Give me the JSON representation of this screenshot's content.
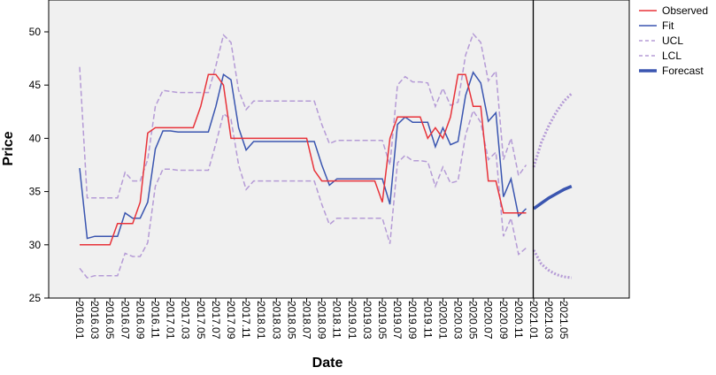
{
  "chart_data": {
    "type": "line",
    "xlabel": "Date",
    "ylabel": "Price",
    "ylim": [
      25,
      53
    ],
    "y_ticks": [
      25,
      30,
      35,
      40,
      45,
      50
    ],
    "grid": false,
    "legend_placement": "right",
    "plot_background": "#f0f0f0",
    "forecast_divider_at": "2021.01",
    "x_tick_labels": [
      "2016.01",
      "2016.03",
      "2016.05",
      "2016.07",
      "2016.09",
      "2016.11",
      "2017.01",
      "2017.03",
      "2017.05",
      "2017.07",
      "2017.09",
      "2017.11",
      "2018.01",
      "2018.03",
      "2018.05",
      "2018.07",
      "2018.09",
      "2018.11",
      "2019.01",
      "2019.03",
      "2019.05",
      "2019.07",
      "2019.09",
      "2019.11",
      "2020.01",
      "2020.03",
      "2020.05",
      "2020.07",
      "2020.09",
      "2020.11",
      "2021.01",
      "2021.03",
      "2021.05"
    ],
    "x": [
      "2016.01",
      "2016.02",
      "2016.03",
      "2016.04",
      "2016.05",
      "2016.06",
      "2016.07",
      "2016.08",
      "2016.09",
      "2016.10",
      "2016.11",
      "2016.12",
      "2017.01",
      "2017.02",
      "2017.03",
      "2017.04",
      "2017.05",
      "2017.06",
      "2017.07",
      "2017.08",
      "2017.09",
      "2017.10",
      "2017.11",
      "2017.12",
      "2018.01",
      "2018.02",
      "2018.03",
      "2018.04",
      "2018.05",
      "2018.06",
      "2018.07",
      "2018.08",
      "2018.09",
      "2018.10",
      "2018.11",
      "2018.12",
      "2019.01",
      "2019.02",
      "2019.03",
      "2019.04",
      "2019.05",
      "2019.06",
      "2019.07",
      "2019.08",
      "2019.09",
      "2019.10",
      "2019.11",
      "2019.12",
      "2020.01",
      "2020.02",
      "2020.03",
      "2020.04",
      "2020.05",
      "2020.06",
      "2020.07",
      "2020.08",
      "2020.09",
      "2020.10",
      "2020.11",
      "2020.12",
      "2021.01",
      "2021.02",
      "2021.03",
      "2021.04",
      "2021.05",
      "2021.06"
    ],
    "series": [
      {
        "name": "Observed",
        "color": "#e8333a",
        "style": "solid",
        "values": [
          30,
          30,
          30,
          30,
          30,
          32,
          32,
          32,
          34,
          40.5,
          41,
          41,
          41,
          41,
          41,
          41,
          43,
          46,
          46,
          45,
          40,
          40,
          40,
          40,
          40,
          40,
          40,
          40,
          40,
          40,
          40,
          37,
          36,
          36,
          36,
          36,
          36,
          36,
          36,
          36,
          34,
          40,
          42,
          42,
          42,
          42,
          40,
          41,
          40,
          42,
          46,
          46,
          43,
          43,
          36,
          36,
          33,
          33,
          33,
          33,
          null,
          null,
          null,
          null,
          null,
          null
        ]
      },
      {
        "name": "Fit",
        "color": "#3a55b0",
        "style": "solid",
        "values": [
          37.2,
          30.6,
          30.8,
          30.8,
          30.8,
          30.8,
          33,
          32.5,
          32.5,
          34,
          39,
          40.7,
          40.7,
          40.6,
          40.6,
          40.6,
          40.6,
          40.6,
          43,
          46,
          45.5,
          41,
          38.9,
          39.7,
          39.7,
          39.7,
          39.7,
          39.7,
          39.7,
          39.7,
          39.7,
          39.7,
          37.5,
          35.6,
          36.2,
          36.2,
          36.2,
          36.2,
          36.2,
          36.2,
          36.2,
          33.8,
          41.3,
          42,
          41.5,
          41.5,
          41.5,
          39.2,
          41,
          39.4,
          39.7,
          44,
          46.2,
          45.2,
          41.6,
          42.4,
          34.5,
          36.2,
          32.7,
          33.4,
          null,
          null,
          null,
          null,
          null,
          null
        ]
      },
      {
        "name": "UCL",
        "color": "#b59bd6",
        "style": "dashed",
        "values": [
          46.7,
          34.4,
          34.4,
          34.4,
          34.4,
          34.4,
          36.8,
          36,
          36,
          38,
          43,
          44.5,
          44.4,
          44.3,
          44.3,
          44.3,
          44.3,
          44.3,
          46.8,
          49.7,
          49,
          44.5,
          42.7,
          43.5,
          43.5,
          43.5,
          43.5,
          43.5,
          43.5,
          43.5,
          43.5,
          43.5,
          41.3,
          39.5,
          39.8,
          39.8,
          39.8,
          39.8,
          39.8,
          39.8,
          39.8,
          37.5,
          45,
          45.8,
          45.3,
          45.3,
          45.2,
          43,
          44.7,
          43.1,
          43.4,
          47.8,
          49.8,
          49,
          45.4,
          46.3,
          38,
          40,
          36.5,
          37.5,
          null,
          null,
          null,
          null,
          null,
          null
        ]
      },
      {
        "name": "LCL",
        "color": "#b59bd6",
        "style": "dashed",
        "values": [
          27.8,
          26.9,
          27.1,
          27.1,
          27.1,
          27.1,
          29.2,
          28.9,
          28.9,
          30.2,
          35.5,
          37.1,
          37.1,
          37,
          37,
          37,
          37,
          37,
          39.5,
          42.3,
          41.8,
          37.5,
          35.2,
          36,
          36,
          36,
          36,
          36,
          36,
          36,
          36,
          36,
          33.8,
          31.9,
          32.5,
          32.5,
          32.5,
          32.5,
          32.5,
          32.5,
          32.5,
          30.1,
          37.7,
          38.4,
          37.9,
          37.9,
          37.8,
          35.5,
          37.3,
          35.8,
          36,
          40.3,
          42.6,
          41.5,
          38,
          38.7,
          30.8,
          32.5,
          29.1,
          29.7,
          null,
          null,
          null,
          null,
          null,
          null
        ]
      },
      {
        "name": "Forecast",
        "color": "#3a55b0",
        "style": "bold",
        "values": [
          null,
          null,
          null,
          null,
          null,
          null,
          null,
          null,
          null,
          null,
          null,
          null,
          null,
          null,
          null,
          null,
          null,
          null,
          null,
          null,
          null,
          null,
          null,
          null,
          null,
          null,
          null,
          null,
          null,
          null,
          null,
          null,
          null,
          null,
          null,
          null,
          null,
          null,
          null,
          null,
          null,
          null,
          null,
          null,
          null,
          null,
          null,
          null,
          null,
          null,
          null,
          null,
          null,
          null,
          null,
          null,
          null,
          null,
          null,
          null,
          33.4,
          33.9,
          34.4,
          34.8,
          35.2,
          35.5
        ]
      }
    ],
    "forecast_ucl": [
      37.3,
      39.6,
      41.2,
      42.5,
      43.5,
      44.2
    ],
    "forecast_lcl": [
      29.5,
      28.2,
      27.6,
      27.2,
      27,
      26.9
    ]
  }
}
